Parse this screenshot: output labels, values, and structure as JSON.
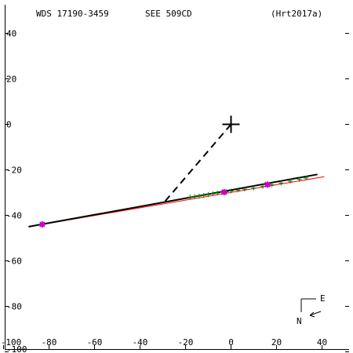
{
  "header": {
    "wds": "WDS 17190-3459",
    "see": "SEE 509CD",
    "ref": "(Hrt2017a)"
  },
  "compass": {
    "east": "E",
    "north": "N"
  },
  "colors": {
    "axis": "#000000",
    "orbit": "#000000",
    "fit": "#ff0000",
    "observations": "#008000",
    "highlight": "#cc00cc"
  },
  "chart_data": {
    "type": "scatter",
    "xlim": [
      -100,
      50
    ],
    "ylim": [
      -100,
      50
    ],
    "x_ticks": [
      -100,
      -80,
      -60,
      -40,
      -20,
      0,
      20,
      40
    ],
    "x_tick_labels": [
      "-100",
      "-80",
      "-60",
      "-40",
      "-20",
      "0",
      "20",
      "40"
    ],
    "y_ticks": [
      40,
      20,
      0,
      -20,
      -40,
      -60,
      -80,
      -100
    ],
    "y_tick_labels": [
      "40",
      "20",
      "0",
      "-20",
      "-40",
      "-60",
      "-80",
      "-100"
    ],
    "primary": {
      "x": 0,
      "y": 0
    },
    "node_line": {
      "from": [
        0,
        0
      ],
      "to": [
        -30,
        -35
      ]
    },
    "orbit_line": {
      "from": [
        -89,
        -45
      ],
      "to": [
        38,
        -22
      ]
    },
    "fit_line": {
      "from": [
        -89,
        -45
      ],
      "to": [
        41,
        -23
      ]
    },
    "observations": [
      {
        "x": -18,
        "y": -32
      },
      {
        "x": -16,
        "y": -31.8
      },
      {
        "x": -14,
        "y": -31.5
      },
      {
        "x": -12,
        "y": -31.2
      },
      {
        "x": -10,
        "y": -30.9
      },
      {
        "x": -8,
        "y": -30.5
      },
      {
        "x": -6,
        "y": -30.2
      },
      {
        "x": -4,
        "y": -29.9
      },
      {
        "x": -2,
        "y": -29.6
      },
      {
        "x": 0,
        "y": -29.3
      },
      {
        "x": 3,
        "y": -28.9
      },
      {
        "x": 6,
        "y": -28.5
      },
      {
        "x": 10,
        "y": -28
      },
      {
        "x": 14,
        "y": -27.3
      },
      {
        "x": 18,
        "y": -26.6
      },
      {
        "x": 22,
        "y": -25.8
      },
      {
        "x": 26,
        "y": -25
      },
      {
        "x": 30,
        "y": -24.2
      },
      {
        "x": 33,
        "y": -23.6
      }
    ],
    "highlighted": [
      {
        "x": -83,
        "y": -44
      },
      {
        "x": -3,
        "y": -29.8
      },
      {
        "x": 16,
        "y": -26.5
      }
    ]
  }
}
